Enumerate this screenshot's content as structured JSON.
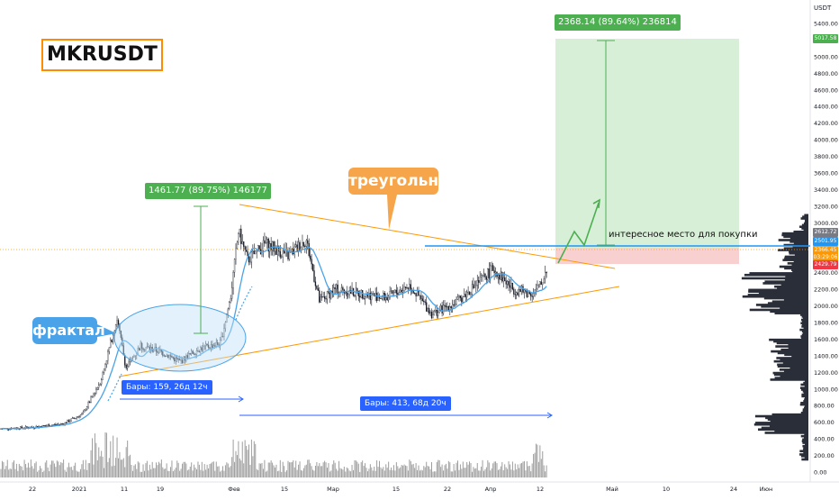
{
  "symbol": "MKRUSDT",
  "currency_label": "USDT",
  "colors": {
    "candle": "#131722",
    "volume": "#9e9e9e",
    "ma_line": "#4aa3e8",
    "triangle": "#ff9800",
    "target_zone": "#c8e6c9",
    "stop_zone": "#f8c8c8",
    "current_price_line": "#2196f3",
    "measure_line": "#4caf50"
  },
  "annotations": {
    "triangle_label": "треугольник",
    "fractal_label": "фрактал",
    "buy_note": "интересное место для покупки",
    "measure_left": "1461.77 (89.75%) 146177",
    "measure_right": "2368.14 (89.64%) 236814",
    "bars_left": "Бары: 159, 26д 12ч",
    "bars_right": "Бары: 413, 68д 20ч"
  },
  "price_tags": {
    "target": "5017.58",
    "high": "2612.72",
    "current": "2501.95",
    "price_a": "2366.45",
    "countdown": "03:29:06",
    "stop": "2429.79"
  },
  "chart_data": {
    "type": "candlestick",
    "title": "",
    "y_axis": {
      "scale": "linear",
      "min": 0,
      "max": 5600,
      "tick_labels": [
        "0.00",
        "200.00",
        "400.00",
        "600.00",
        "800.00",
        "1000.00",
        "1200.00",
        "1400.00",
        "1600.00",
        "1800.00",
        "2000.00",
        "2200.00",
        "2400.00",
        "2600.00",
        "2800.00",
        "3000.00",
        "3200.00",
        "3400.00",
        "3600.00",
        "3800.00",
        "4000.00",
        "4200.00",
        "4400.00",
        "4600.00",
        "4800.00",
        "5000.00",
        "5200.00",
        "5400.00"
      ]
    },
    "x_axis": {
      "tick_labels": [
        "22",
        "2021",
        "11",
        "19",
        "Фев",
        "15",
        "Мар",
        "15",
        "22",
        "Апр",
        "12",
        "Май",
        "10",
        "24",
        "Июн"
      ]
    },
    "price_path": [
      {
        "x": "Dec 16",
        "y": 520
      },
      {
        "x": "Dec 24",
        "y": 540
      },
      {
        "x": "Jan 1",
        "y": 580
      },
      {
        "x": "Jan 5",
        "y": 700
      },
      {
        "x": "Jan 8",
        "y": 1100
      },
      {
        "x": "Jan 10",
        "y": 1850
      },
      {
        "x": "Jan 12",
        "y": 1250
      },
      {
        "x": "Jan 15",
        "y": 1520
      },
      {
        "x": "Jan 19",
        "y": 1450
      },
      {
        "x": "Jan 24",
        "y": 1330
      },
      {
        "x": "Jan 28",
        "y": 1480
      },
      {
        "x": "Feb 2",
        "y": 1550
      },
      {
        "x": "Feb 5",
        "y": 2100
      },
      {
        "x": "Feb 7",
        "y": 2900
      },
      {
        "x": "Feb 9",
        "y": 2550
      },
      {
        "x": "Feb 13",
        "y": 2750
      },
      {
        "x": "Feb 17",
        "y": 2600
      },
      {
        "x": "Feb 21",
        "y": 2800
      },
      {
        "x": "Feb 24",
        "y": 2050
      },
      {
        "x": "Feb 28",
        "y": 2200
      },
      {
        "x": "Mar 6",
        "y": 2150
      },
      {
        "x": "Mar 12",
        "y": 2100
      },
      {
        "x": "Mar 17",
        "y": 2250
      },
      {
        "x": "Mar 22",
        "y": 1900
      },
      {
        "x": "Mar 27",
        "y": 2050
      },
      {
        "x": "Mar 31",
        "y": 2450
      },
      {
        "x": "Apr 4",
        "y": 2200
      },
      {
        "x": "Apr 8",
        "y": 2150
      },
      {
        "x": "Apr 11",
        "y": 2250
      },
      {
        "x": "Apr 13",
        "y": 2550
      }
    ],
    "patterns": {
      "triangle": {
        "upper_start": "Feb 7 @ 3050",
        "upper_end": "Apr 19 @ 2260",
        "lower_start": "Jan 8 @ 1160",
        "lower_end": "Apr 19 @ 2200"
      },
      "projection_target": 5017.58,
      "stop_level": 2429.79,
      "measure_left": {
        "from": 1600,
        "to": 3060
      },
      "measure_right": {
        "from": 2650,
        "to": 5017
      }
    }
  }
}
